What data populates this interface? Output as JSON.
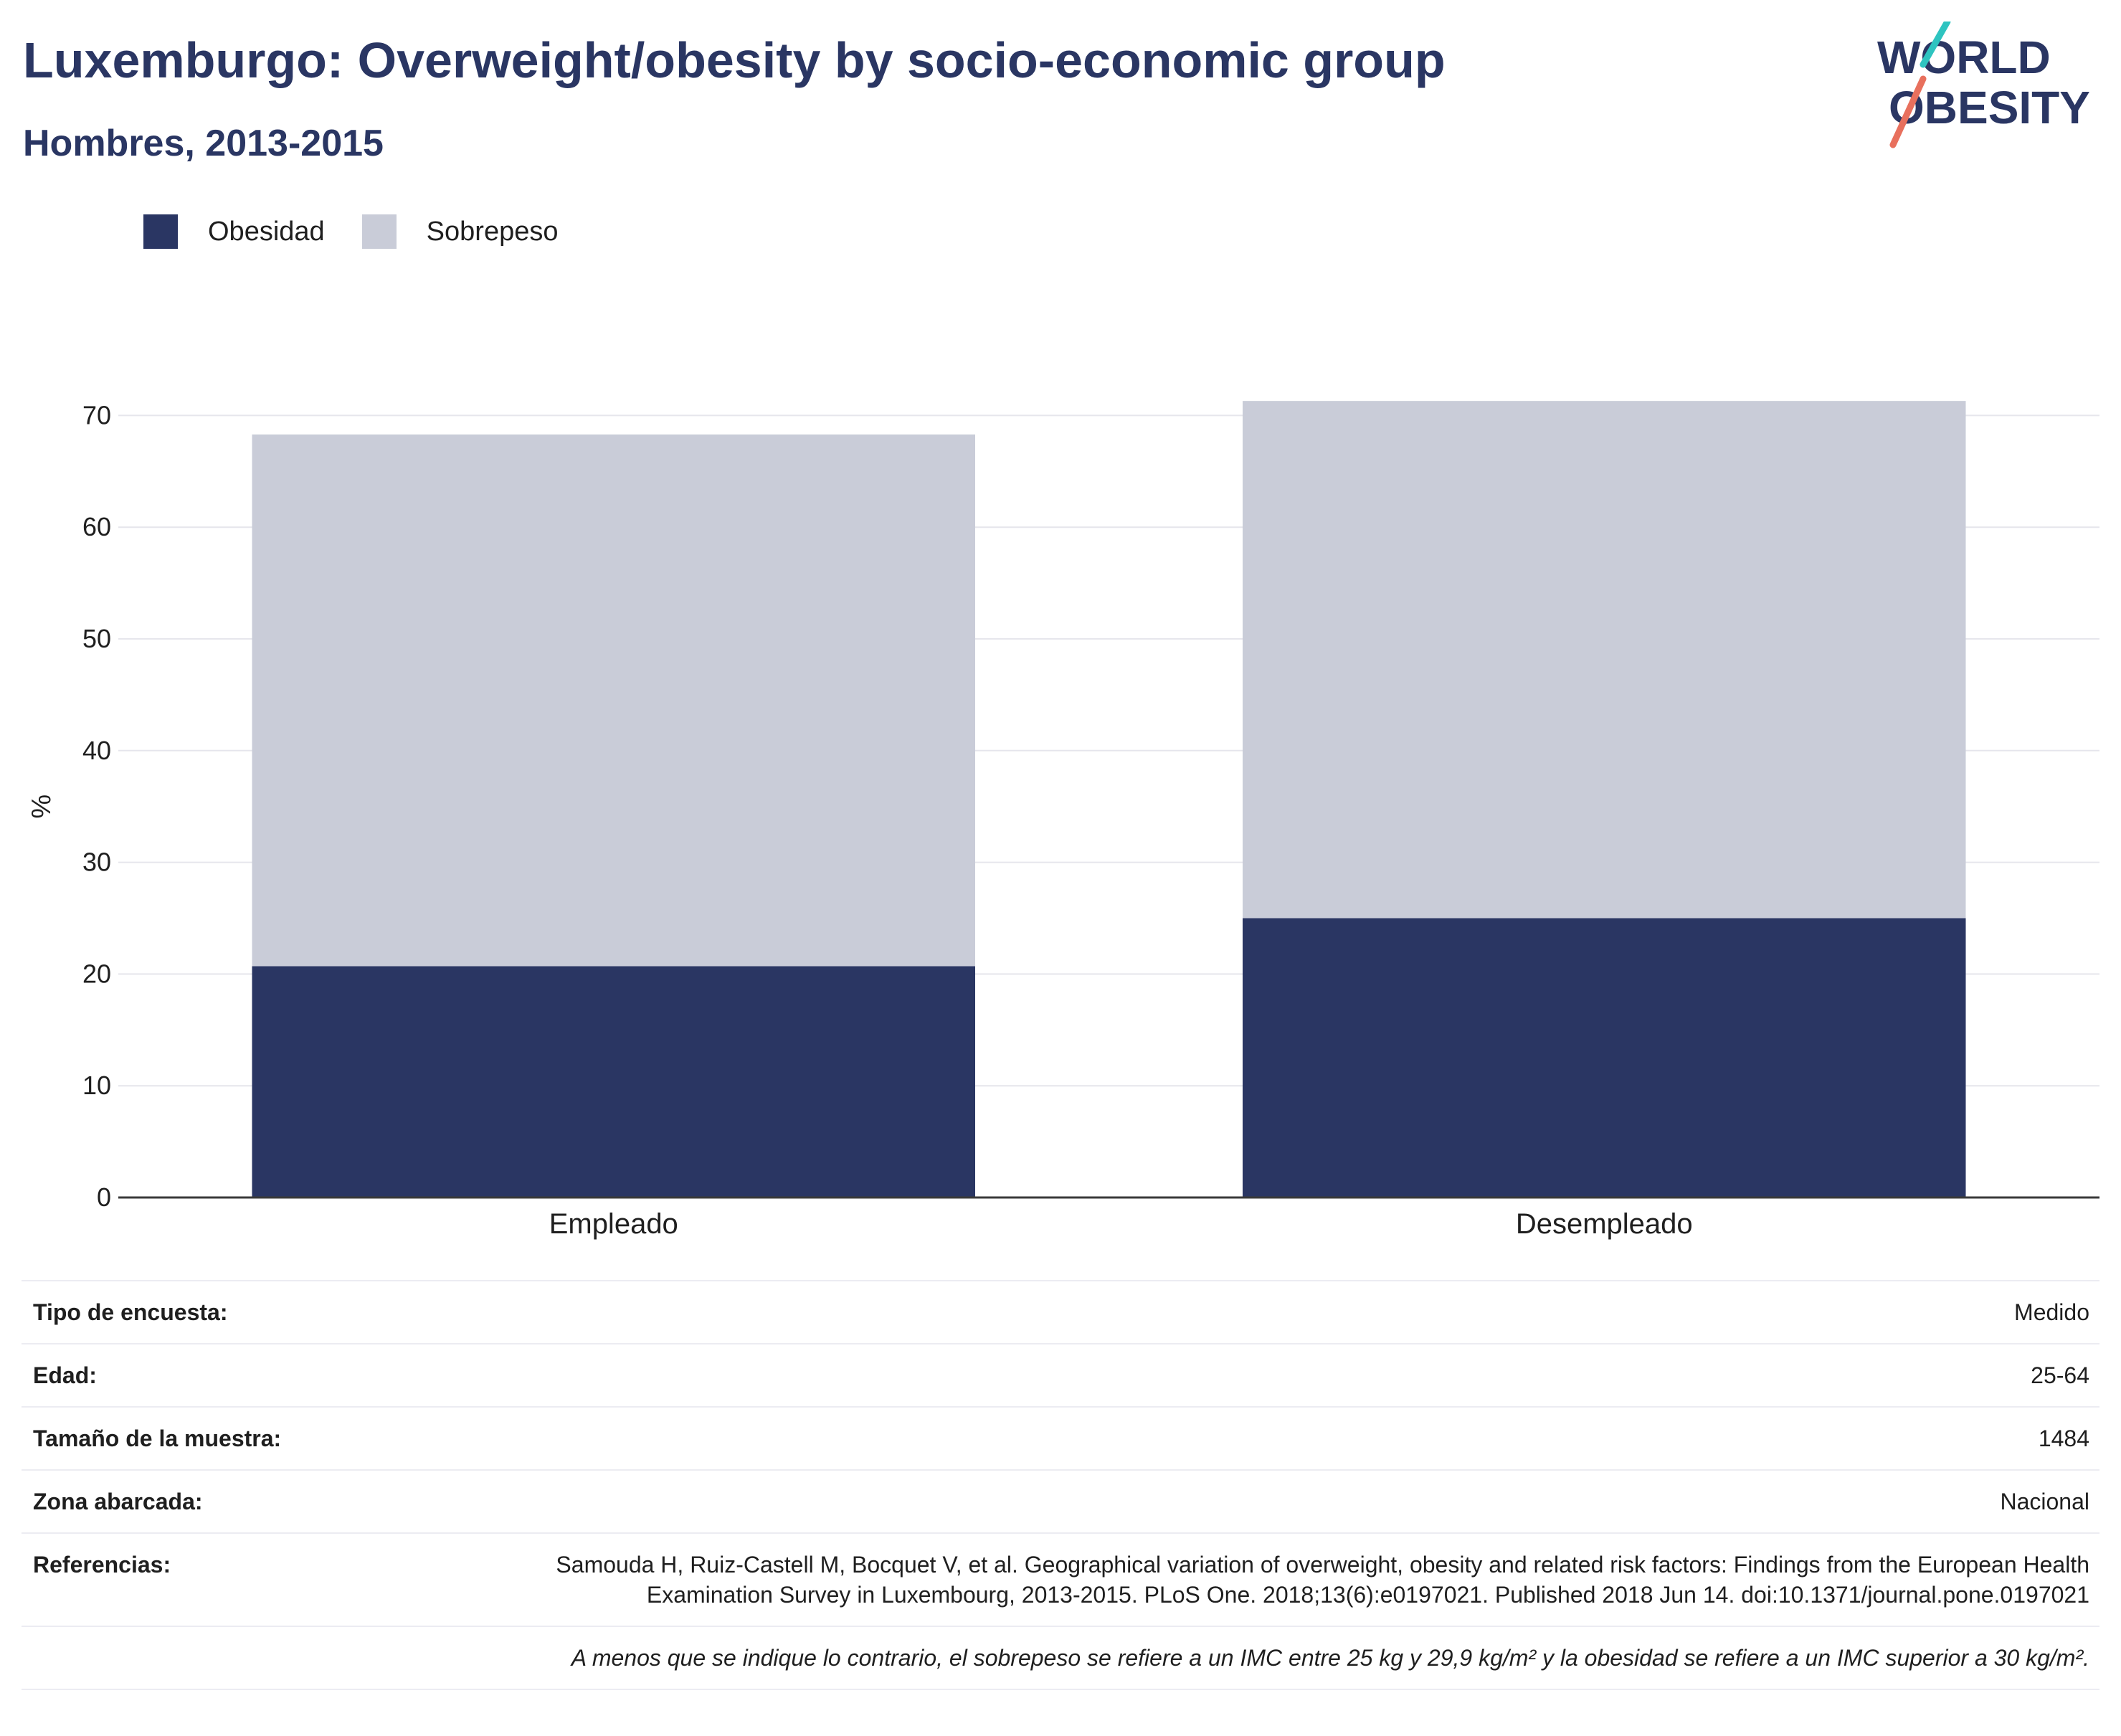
{
  "header": {
    "title": "Luxemburgo: Overweight/obesity by socio-economic group",
    "subtitle": "Hombres, 2013-2015"
  },
  "logo": {
    "line1": "WORLD",
    "line2": "OBESITY"
  },
  "colors": {
    "obesity": "#2a3663",
    "overweight": "#c9ccd8",
    "text": "#2a3663",
    "logo_teal": "#2ec4c0",
    "logo_coral": "#e8705d"
  },
  "chart_data": {
    "type": "bar",
    "stacked": true,
    "categories": [
      "Empleado",
      "Desempleado"
    ],
    "series": [
      {
        "name": "Obesidad",
        "values": [
          20.7,
          25.0
        ]
      },
      {
        "name": "Sobrepeso",
        "values": [
          47.6,
          46.3
        ]
      }
    ],
    "ylabel": "%",
    "xlabel": "",
    "ylim": [
      0,
      70
    ],
    "yticks": [
      0,
      10,
      20,
      30,
      40,
      50,
      60,
      70
    ],
    "grid": true,
    "legend": "top-left"
  },
  "info": {
    "rows": [
      {
        "label": "Tipo de encuesta:",
        "value": "Medido"
      },
      {
        "label": "Edad:",
        "value": "25-64"
      },
      {
        "label": "Tamaño de la muestra:",
        "value": "1484"
      },
      {
        "label": "Zona abarcada:",
        "value": "Nacional"
      },
      {
        "label": "Referencias:",
        "value": "Samouda H, Ruiz-Castell M, Bocquet V, et al. Geographical variation of overweight, obesity and related risk factors: Findings from the European Health Examination Survey in Luxembourg, 2013-2015. PLoS One. 2018;13(6):e0197021. Published 2018 Jun 14. doi:10.1371/journal.pone.0197021"
      }
    ],
    "note": "A menos que se indique lo contrario, el sobrepeso se refiere a un IMC entre 25 kg y 29,9 kg/m² y la obesidad se refiere a un IMC superior a 30 kg/m²."
  }
}
